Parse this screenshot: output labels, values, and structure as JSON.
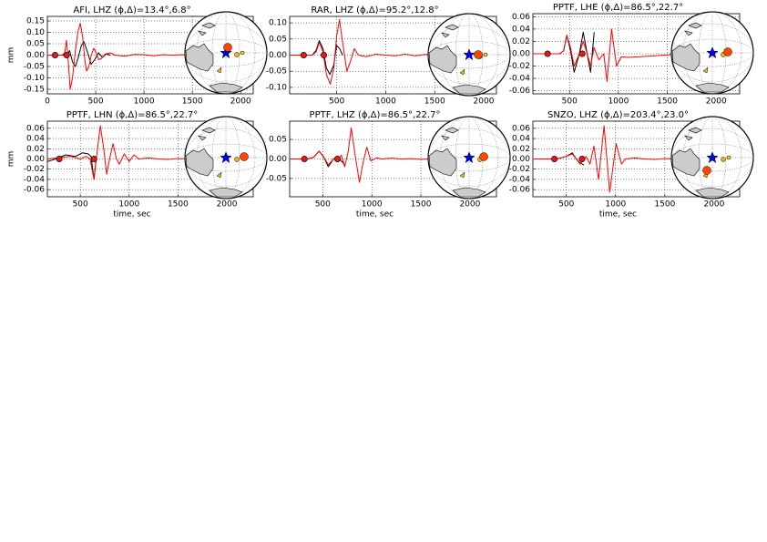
{
  "chart_data": [
    {
      "type": "line",
      "title": "AFI, LHZ (ϕ,Δ)=13.4°,6.8°",
      "ylabel": "mm",
      "xlim": [
        0,
        2130
      ],
      "ylim": [
        -0.17,
        0.17
      ],
      "grid": true,
      "xticks": [
        0,
        500,
        1000,
        1500,
        2000
      ],
      "yticks": [
        {
          "value": -0.15,
          "label": "-0.15"
        },
        {
          "value": -0.1,
          "label": "-0.10"
        },
        {
          "value": -0.05,
          "label": "-0.05"
        },
        {
          "value": 0,
          "label": "0.00"
        },
        {
          "value": 0.05,
          "label": "0.05"
        },
        {
          "value": 0.1,
          "label": "0.10"
        },
        {
          "value": 0.15,
          "label": "0.15"
        }
      ],
      "series": [
        {
          "style": "line",
          "color": "#000000",
          "x": [
            0,
            200,
            230,
            260,
            290,
            320,
            350,
            377,
            410,
            453,
            490,
            530,
            570,
            610,
            650
          ],
          "values": [
            0,
            0,
            0.02,
            -0.03,
            -0.05,
            -0.01,
            0.04,
            0.06,
            0.02,
            -0.04,
            -0.02,
            0.01,
            -0.01,
            0.005,
            0
          ]
        },
        {
          "style": "line",
          "color": "#ff0000",
          "x": [
            0,
            150,
            180,
            198,
            215,
            236,
            260,
            290,
            315,
            340,
            365,
            390,
            405,
            430,
            455,
            480,
            505,
            530,
            560,
            600,
            650,
            700,
            800,
            900,
            1000,
            1100,
            1200,
            1300,
            1400,
            1500,
            1600
          ],
          "values": [
            0,
            0,
            0.01,
            0.065,
            -0.02,
            -0.15,
            -0.1,
            0.02,
            0.1,
            0.14,
            0.08,
            -0.03,
            -0.07,
            -0.05,
            0,
            0.03,
            0.01,
            -0.02,
            -0.015,
            0.005,
            0.01,
            0,
            -0.005,
            0.003,
            0.002,
            -0.003,
            0.002,
            0,
            0.002,
            -0.002,
            0
          ]
        },
        {
          "style": "markers",
          "color": "#e31a1c",
          "x": [
            80,
            200
          ],
          "values": [
            0,
            0
          ]
        }
      ]
    },
    {
      "type": "line",
      "title": "RAR, LHZ (ϕ,Δ)=95.2°,12.8°",
      "xlim": [
        20,
        2130
      ],
      "ylim": [
        -0.12,
        0.12
      ],
      "grid": true,
      "xticks": [
        500,
        1000,
        1500,
        2000
      ],
      "yticks": [
        {
          "value": -0.1,
          "label": "-0.10"
        },
        {
          "value": -0.05,
          "label": "-0.05"
        },
        {
          "value": 0,
          "label": "0.00"
        },
        {
          "value": 0.05,
          "label": "0.05"
        },
        {
          "value": 0.1,
          "label": "0.10"
        }
      ],
      "series": [
        {
          "style": "line",
          "color": "#000000",
          "x": [
            20,
            250,
            290,
            322,
            360,
            395,
            430,
            470,
            500,
            530,
            560
          ],
          "values": [
            0,
            0,
            0.015,
            0.045,
            0.02,
            -0.04,
            -0.06,
            -0.03,
            0.03,
            0.02,
            0
          ]
        },
        {
          "style": "line",
          "color": "#ff0000",
          "x": [
            20,
            250,
            290,
            322,
            360,
            395,
            435,
            470,
            500,
            528,
            560,
            603,
            640,
            680,
            720,
            800,
            900,
            1000,
            1100,
            1200,
            1300,
            1400,
            1500,
            1600,
            1700,
            1800
          ],
          "values": [
            0,
            0,
            0.01,
            0.04,
            0.01,
            -0.06,
            -0.09,
            -0.04,
            0.06,
            0.11,
            0.04,
            -0.05,
            -0.02,
            0.02,
            0,
            -0.005,
            0.003,
            0,
            -0.002,
            0.003,
            -0.002,
            0.002,
            0,
            0.001,
            -0.002,
            0
          ]
        },
        {
          "style": "markers",
          "color": "#e31a1c",
          "x": [
            163,
            369
          ],
          "values": [
            0,
            0
          ]
        }
      ]
    },
    {
      "type": "line",
      "title": "PPTF, LHE (ϕ,Δ)=86.5°,22.7°",
      "xlim": [
        125,
        2240
      ],
      "ylim": [
        -0.065,
        0.065
      ],
      "grid": true,
      "xticks": [
        500,
        1000,
        1500,
        2000
      ],
      "yticks": [
        {
          "value": -0.06,
          "label": "-0.06"
        },
        {
          "value": -0.04,
          "label": "-0.04"
        },
        {
          "value": -0.02,
          "label": "-0.02"
        },
        {
          "value": 0,
          "label": "0.00"
        },
        {
          "value": 0.02,
          "label": "0.02"
        },
        {
          "value": 0.04,
          "label": "0.04"
        },
        {
          "value": 0.06,
          "label": "0.06"
        }
      ],
      "series": [
        {
          "style": "line",
          "color": "#000000",
          "x": [
            125,
            400,
            440,
            472,
            510,
            547,
            600,
            640,
            680,
            715,
            752
          ],
          "values": [
            0,
            0,
            0.005,
            0.03,
            0.005,
            -0.03,
            0,
            0.035,
            0,
            -0.03,
            0.035
          ]
        },
        {
          "style": "line",
          "color": "#ff0000",
          "x": [
            125,
            400,
            440,
            472,
            510,
            547,
            600,
            640,
            680,
            715,
            750,
            800,
            850,
            883,
            930,
            980,
            1030,
            1100,
            1200,
            1300,
            1400,
            1500,
            1600
          ],
          "values": [
            0,
            0,
            0.005,
            0.03,
            0.01,
            -0.02,
            0,
            0.02,
            0,
            -0.02,
            0.01,
            -0.01,
            0,
            -0.045,
            0.04,
            -0.02,
            -0.005,
            -0.006,
            -0.005,
            -0.004,
            -0.003,
            -0.002,
            0
          ]
        },
        {
          "style": "markers",
          "color": "#e31a1c",
          "x": [
            275,
            630
          ],
          "values": [
            0,
            0
          ]
        }
      ]
    },
    {
      "type": "line",
      "title": "PPTF, LHN (ϕ,Δ)=86.5°,22.7°",
      "ylabel": "mm",
      "xlabel": "time, sec",
      "xlim": [
        163,
        2270
      ],
      "ylim": [
        -0.074,
        0.074
      ],
      "grid": true,
      "xticks": [
        500,
        1000,
        1500,
        2000
      ],
      "yticks": [
        {
          "value": -0.06,
          "label": "-0.06"
        },
        {
          "value": -0.04,
          "label": "-0.04"
        },
        {
          "value": -0.02,
          "label": "-0.02"
        },
        {
          "value": 0,
          "label": "0.00"
        },
        {
          "value": 0.02,
          "label": "0.02"
        },
        {
          "value": 0.04,
          "label": "0.04"
        },
        {
          "value": 0.06,
          "label": "0.06"
        }
      ],
      "series": [
        {
          "style": "line",
          "color": "#000000",
          "x": [
            165,
            250,
            350,
            450,
            520,
            580,
            610,
            640,
            665
          ],
          "values": [
            -0.005,
            0,
            0.008,
            0.005,
            0.012,
            0.01,
            0.005,
            -0.04,
            0.005
          ]
        },
        {
          "style": "line",
          "color": "#ff0000",
          "x": [
            165,
            300,
            400,
            500,
            560,
            600,
            640,
            670,
            705,
            740,
            770,
            800,
            835,
            870,
            900,
            950,
            1000,
            1050,
            1100,
            1200,
            1300,
            1400,
            1500,
            1600
          ],
          "values": [
            0,
            0.003,
            0.005,
            0,
            0.005,
            0,
            -0.04,
            0.01,
            0.065,
            0.02,
            -0.03,
            0,
            0.03,
            0,
            -0.01,
            0.01,
            -0.005,
            0.008,
            0,
            0.002,
            0,
            -0.001,
            0.001,
            0
          ]
        },
        {
          "style": "markers",
          "color": "#e31a1c",
          "x": [
            285,
            640
          ],
          "values": [
            0,
            0
          ]
        }
      ]
    },
    {
      "type": "line",
      "title": "PPTF, LHZ (ϕ,Δ)=86.5°,22.7°",
      "xlabel": "time, sec",
      "xlim": [
        163,
        2270
      ],
      "ylim": [
        -0.097,
        0.097
      ],
      "grid": true,
      "xticks": [
        500,
        1000,
        1500,
        2000
      ],
      "yticks": [
        {
          "value": -0.05,
          "label": "-0.05"
        },
        {
          "value": 0,
          "label": "0.00"
        },
        {
          "value": 0.05,
          "label": "0.05"
        }
      ],
      "series": [
        {
          "style": "line",
          "color": "#000000",
          "x": [
            165,
            350,
            410,
            463,
            510,
            556,
            610,
            650,
            690,
            724
          ],
          "values": [
            0,
            0,
            0.005,
            0.02,
            0.005,
            -0.02,
            0,
            0.005,
            -0.005,
            -0.015
          ]
        },
        {
          "style": "line",
          "color": "#ff0000",
          "x": [
            165,
            350,
            410,
            463,
            510,
            556,
            610,
            660,
            690,
            724,
            760,
            790,
            830,
            874,
            910,
            949,
            990,
            1050,
            1100,
            1200,
            1300,
            1400,
            1500,
            1600
          ],
          "values": [
            0,
            0,
            0.005,
            0.02,
            0.005,
            -0.015,
            0,
            0,
            0.01,
            -0.02,
            0.02,
            0.08,
            0.01,
            -0.06,
            -0.01,
            0.03,
            -0.005,
            0.003,
            0,
            0.002,
            0,
            0.001,
            -0.001,
            0
          ]
        },
        {
          "style": "markers",
          "color": "#e31a1c",
          "x": [
            313,
            650
          ],
          "values": [
            0,
            0
          ]
        }
      ]
    },
    {
      "type": "line",
      "title": "SNZO, LHZ (ϕ,Δ)=203.4°,23.0°",
      "xlabel": "time, sec",
      "xlim": [
        160,
        2260
      ],
      "ylim": [
        -0.074,
        0.074
      ],
      "grid": true,
      "xticks": [
        500,
        1000,
        1500,
        2000
      ],
      "yticks": [
        {
          "value": -0.06,
          "label": "-0.06"
        },
        {
          "value": -0.04,
          "label": "-0.04"
        },
        {
          "value": -0.02,
          "label": "-0.02"
        },
        {
          "value": 0,
          "label": "0.00"
        },
        {
          "value": 0.02,
          "label": "0.02"
        },
        {
          "value": 0.04,
          "label": "0.04"
        },
        {
          "value": 0.06,
          "label": "0.06"
        }
      ],
      "series": [
        {
          "style": "line",
          "color": "#000000",
          "x": [
            160,
            400,
            500,
            560,
            600,
            640,
            680
          ],
          "values": [
            0,
            0,
            0.005,
            0.012,
            0,
            -0.008,
            -0.012
          ]
        },
        {
          "style": "line",
          "color": "#ff0000",
          "x": [
            160,
            400,
            500,
            560,
            600,
            640,
            700,
            740,
            780,
            827,
            883,
            940,
            1005,
            1060,
            1100,
            1200,
            1300,
            1400,
            1500,
            1600
          ],
          "values": [
            0,
            0,
            0.005,
            0.01,
            0,
            -0.01,
            0.005,
            -0.01,
            0.025,
            -0.04,
            0.065,
            -0.065,
            0.03,
            -0.01,
            0,
            0.002,
            0,
            -0.001,
            0.001,
            0
          ]
        },
        {
          "style": "markers",
          "color": "#e31a1c",
          "x": [
            378,
            659
          ],
          "values": [
            0,
            0
          ]
        }
      ]
    }
  ]
}
